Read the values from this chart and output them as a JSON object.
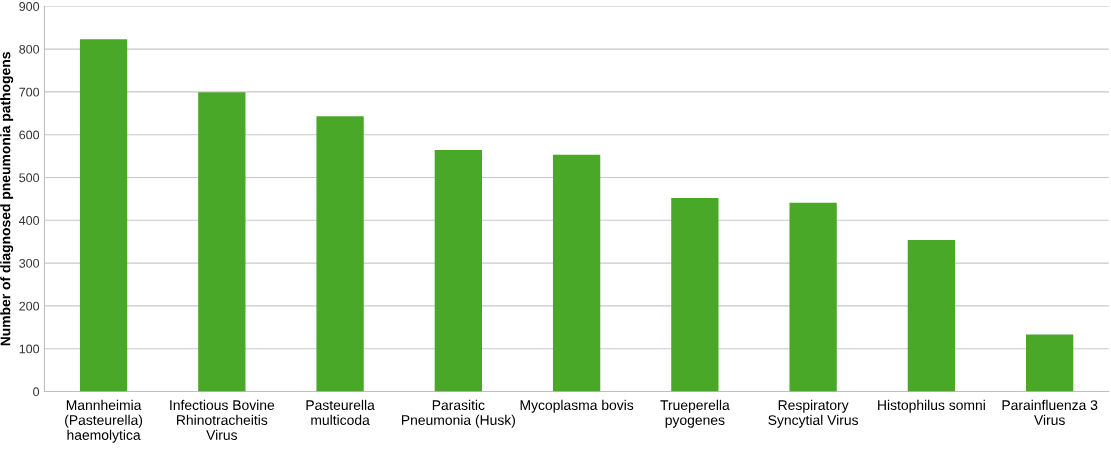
{
  "chart_data": {
    "type": "bar",
    "ylabel": "Number of diagnosed pneumonia pathogens",
    "categories": [
      "Mannheimia\n(Pasteurella)\nhaemolytica",
      "Infectious Bovine\nRhinotracheitis\nVirus",
      "Pasteurella\nmulticoda",
      "Parasitic\nPneumonia (Husk)",
      "Mycoplasma bovis",
      "Trueperella\npyogenes",
      "Respiratory\nSyncytial Virus",
      "Histophilus somni",
      "Parainfluenza 3\nVirus"
    ],
    "values": [
      823,
      699,
      643,
      564,
      553,
      452,
      441,
      354,
      133
    ],
    "color": "#4aa829",
    "ylim": [
      0,
      900
    ],
    "yticks": [
      0,
      100,
      200,
      300,
      400,
      500,
      600,
      700,
      800,
      900
    ],
    "grid": "y"
  }
}
